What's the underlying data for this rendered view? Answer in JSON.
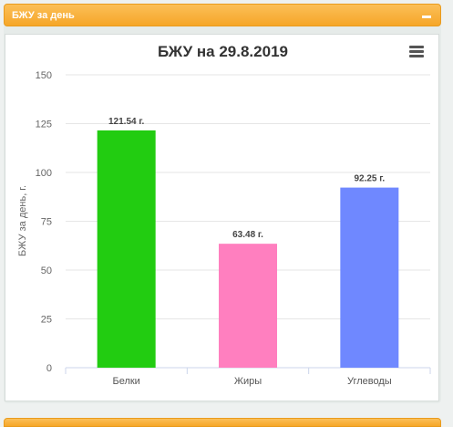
{
  "panel": {
    "title": "БЖУ за день"
  },
  "chart_data": {
    "type": "bar",
    "title": "БЖУ на 29.8.2019",
    "ylabel": "БЖУ за день, г.",
    "xlabel": "",
    "categories": [
      "Белки",
      "Жиры",
      "Углеводы"
    ],
    "values": [
      121.54,
      63.48,
      92.25
    ],
    "data_labels": [
      "121.54 г.",
      "63.48 г.",
      "92.25 г."
    ],
    "colors": [
      "#22cc11",
      "#ff7fbf",
      "#6f88ff"
    ],
    "ylim": [
      0,
      150
    ],
    "yticks": [
      0,
      25,
      50,
      75,
      100,
      125,
      150
    ],
    "grid": true,
    "legend": "none"
  },
  "icons": {
    "collapse": "minus-icon",
    "menu": "hamburger-menu-icon"
  }
}
